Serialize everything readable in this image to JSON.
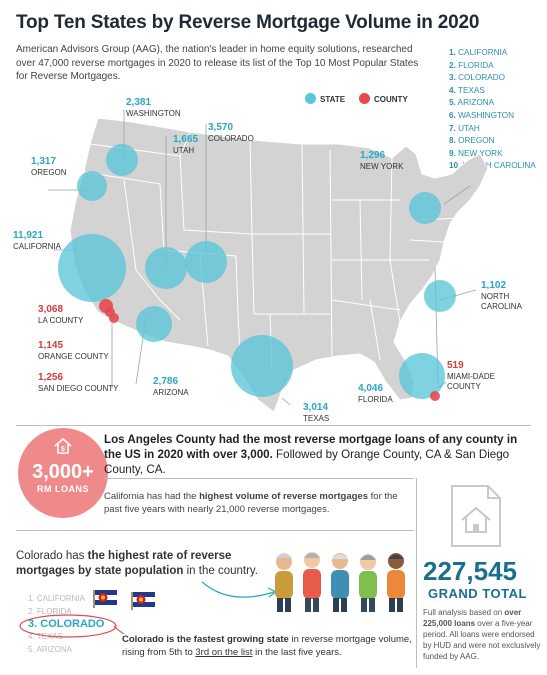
{
  "title": "Top Ten States by Reverse Mortgage Volume in 2020",
  "intro": "American Advisors Group (AAG), the nation's leader in home equity solutions, researched over 47,000 reverse mortgages in 2020 to release its list of the Top 10 Most Popular States for Reverse Mortgages.",
  "rank_list": [
    {
      "num": "1.",
      "name": "CALIFORNIA"
    },
    {
      "num": "2.",
      "name": "FLORIDA"
    },
    {
      "num": "3.",
      "name": "COLORADO"
    },
    {
      "num": "4.",
      "name": "TEXAS"
    },
    {
      "num": "5.",
      "name": "ARIZONA"
    },
    {
      "num": "6.",
      "name": "WASHINGTON"
    },
    {
      "num": "7.",
      "name": "UTAH"
    },
    {
      "num": "8.",
      "name": "OREGON"
    },
    {
      "num": "9.",
      "name": "NEW YORK"
    },
    {
      "num": "10.",
      "name": "NORTH CAROLINA"
    }
  ],
  "legend": {
    "state": "STATE",
    "county": "COUNTY",
    "state_color": "#5bc5d9",
    "county_color": "#e5484d"
  },
  "states": {
    "washington": {
      "value": "2,381",
      "label": "WASHINGTON"
    },
    "utah": {
      "value": "1,665",
      "label": "UTAH"
    },
    "colorado": {
      "value": "3,570",
      "label": "COLORADO"
    },
    "oregon": {
      "value": "1,317",
      "label": "OREGON"
    },
    "new_york": {
      "value": "1,296",
      "label": "NEW YORK"
    },
    "california": {
      "value": "11,921",
      "label": "CALIFORNIA"
    },
    "north_carolina": {
      "value": "1,102",
      "label": "NORTH CAROLINA"
    },
    "arizona": {
      "value": "2,786",
      "label": "ARIZONA"
    },
    "texas": {
      "value": "3,014",
      "label": "TEXAS"
    },
    "florida": {
      "value": "4,046",
      "label": "FLORIDA"
    }
  },
  "counties": {
    "la": {
      "value": "3,068",
      "label": "LA COUNTY"
    },
    "orange": {
      "value": "1,145",
      "label": "ORANGE COUNTY"
    },
    "san_diego": {
      "value": "1,256",
      "label": "SAN DIEGO COUNTY"
    },
    "miami_dade": {
      "value": "519",
      "label": "MIAMI-DADE COUNTY"
    }
  },
  "rm_badge": {
    "value": "3,000+",
    "label": "RM LOANS"
  },
  "la_statement": {
    "bold": "Los Angeles County had the most reverse mortgage loans of any county in the US in 2020 with over 3,000.",
    "rest": " Followed by Orange County, CA & San Diego County, CA."
  },
  "ca_statement": {
    "pre": "California has had the ",
    "bold": "highest volume of reverse mortgages",
    "post": " for the past five years with nearly 21,000 reverse mortgages."
  },
  "co_statement": {
    "pre": "Colorado has ",
    "bold": "the highest rate of reverse mortgages by state population",
    "post": " in the country."
  },
  "co_list": [
    {
      "num": "1.",
      "name": "CALIFORNIA"
    },
    {
      "num": "2.",
      "name": "FLORIDA"
    },
    {
      "num": "3.",
      "name": "COLORADO"
    },
    {
      "num": "4.",
      "name": "TEXAS"
    },
    {
      "num": "5.",
      "name": "ARIZONA"
    }
  ],
  "fast_statement": {
    "bold": "Colorado is the fastest growing state",
    "mid": " in reverse mortgage volume, rising from 5th to ",
    "under": "3rd on the list",
    "post": " in the last five years."
  },
  "grand_total": {
    "value": "227,545",
    "label": "GRAND TOTAL",
    "pre": "Full analysis based on ",
    "bold": "over 225,000 loans",
    "post": " over a five-year period. All loans were endorsed by HUD and were not exclusively funded by AAG."
  }
}
